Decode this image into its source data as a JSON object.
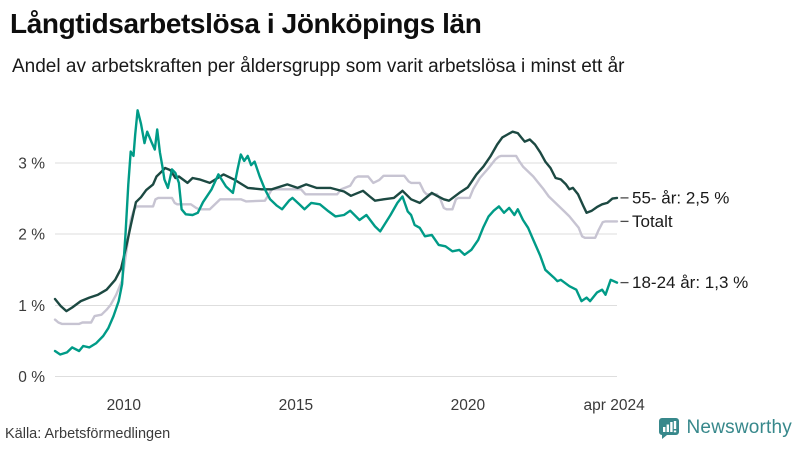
{
  "chart_data": {
    "type": "line",
    "title": "Långtidsarbetslösa i Jönköpings län",
    "subtitle": "Andel av arbetskraften per åldersgrupp som varit arbetslösa i minst ett år",
    "xlabel": "",
    "ylabel": "",
    "x_range": [
      2008.0,
      2024.333
    ],
    "ylim": [
      0,
      3.9
    ],
    "grid": true,
    "legend_position": "right-inline-end-labels",
    "y_ticks": [
      {
        "v": 0,
        "label": "0 %"
      },
      {
        "v": 1,
        "label": "1 %"
      },
      {
        "v": 2,
        "label": "2 %"
      },
      {
        "v": 3,
        "label": "3 %"
      }
    ],
    "x_ticks": [
      {
        "t": 2010,
        "label": "2010"
      },
      {
        "t": 2015,
        "label": "2015"
      },
      {
        "t": 2020,
        "label": "2020"
      },
      {
        "t": 2024.25,
        "label": "apr 2024"
      }
    ],
    "series": [
      {
        "name": "Totalt",
        "end_label": "Totalt",
        "end_value": 2.18,
        "color": "#c7c4d2",
        "points": [
          [
            2008.0,
            0.8
          ],
          [
            2008.1,
            0.76
          ],
          [
            2008.2,
            0.74
          ],
          [
            2008.7,
            0.74
          ],
          [
            2008.8,
            0.76
          ],
          [
            2009.05,
            0.76
          ],
          [
            2009.15,
            0.85
          ],
          [
            2009.35,
            0.87
          ],
          [
            2009.5,
            0.94
          ],
          [
            2009.62,
            1.01
          ],
          [
            2009.78,
            1.15
          ],
          [
            2009.95,
            1.35
          ],
          [
            2010.1,
            1.85
          ],
          [
            2010.2,
            2.2
          ],
          [
            2010.3,
            2.35
          ],
          [
            2010.38,
            2.39
          ],
          [
            2010.85,
            2.39
          ],
          [
            2010.92,
            2.49
          ],
          [
            2011.0,
            2.51
          ],
          [
            2011.4,
            2.51
          ],
          [
            2011.48,
            2.44
          ],
          [
            2011.55,
            2.42
          ],
          [
            2011.95,
            2.42
          ],
          [
            2012.1,
            2.37
          ],
          [
            2012.2,
            2.35
          ],
          [
            2012.5,
            2.35
          ],
          [
            2012.65,
            2.42
          ],
          [
            2012.8,
            2.49
          ],
          [
            2013.4,
            2.49
          ],
          [
            2013.55,
            2.46
          ],
          [
            2014.1,
            2.47
          ],
          [
            2014.22,
            2.56
          ],
          [
            2014.3,
            2.63
          ],
          [
            2015.15,
            2.63
          ],
          [
            2015.28,
            2.56
          ],
          [
            2016.2,
            2.56
          ],
          [
            2016.32,
            2.63
          ],
          [
            2016.58,
            2.68
          ],
          [
            2016.72,
            2.79
          ],
          [
            2016.8,
            2.81
          ],
          [
            2017.1,
            2.81
          ],
          [
            2017.25,
            2.72
          ],
          [
            2017.42,
            2.76
          ],
          [
            2017.55,
            2.82
          ],
          [
            2018.15,
            2.82
          ],
          [
            2018.28,
            2.74
          ],
          [
            2018.35,
            2.72
          ],
          [
            2018.6,
            2.72
          ],
          [
            2018.72,
            2.6
          ],
          [
            2018.8,
            2.56
          ],
          [
            2019.1,
            2.56
          ],
          [
            2019.2,
            2.49
          ],
          [
            2019.3,
            2.37
          ],
          [
            2019.38,
            2.35
          ],
          [
            2019.55,
            2.35
          ],
          [
            2019.65,
            2.49
          ],
          [
            2019.72,
            2.51
          ],
          [
            2020.05,
            2.51
          ],
          [
            2020.15,
            2.63
          ],
          [
            2020.35,
            2.79
          ],
          [
            2020.6,
            2.93
          ],
          [
            2020.8,
            3.05
          ],
          [
            2020.9,
            3.09
          ],
          [
            2020.97,
            3.1
          ],
          [
            2021.4,
            3.1
          ],
          [
            2021.5,
            3.02
          ],
          [
            2021.6,
            2.95
          ],
          [
            2021.75,
            2.88
          ],
          [
            2021.9,
            2.81
          ],
          [
            2022.05,
            2.72
          ],
          [
            2022.2,
            2.63
          ],
          [
            2022.35,
            2.53
          ],
          [
            2022.5,
            2.46
          ],
          [
            2022.65,
            2.39
          ],
          [
            2022.8,
            2.32
          ],
          [
            2022.95,
            2.25
          ],
          [
            2023.1,
            2.16
          ],
          [
            2023.22,
            2.09
          ],
          [
            2023.32,
            1.97
          ],
          [
            2023.4,
            1.95
          ],
          [
            2023.7,
            1.95
          ],
          [
            2023.8,
            2.06
          ],
          [
            2023.92,
            2.17
          ],
          [
            2024.0,
            2.18
          ],
          [
            2024.333,
            2.18
          ]
        ]
      },
      {
        "name": "55- år",
        "end_label": "55- år: 2,5 %",
        "end_value": 2.51,
        "color": "#1c4942",
        "points": [
          [
            2008.0,
            1.09
          ],
          [
            2008.17,
            0.99
          ],
          [
            2008.33,
            0.92
          ],
          [
            2008.5,
            0.97
          ],
          [
            2008.75,
            1.06
          ],
          [
            2009.0,
            1.11
          ],
          [
            2009.25,
            1.15
          ],
          [
            2009.5,
            1.22
          ],
          [
            2009.75,
            1.36
          ],
          [
            2009.92,
            1.52
          ],
          [
            2010.08,
            1.85
          ],
          [
            2010.2,
            2.12
          ],
          [
            2010.35,
            2.45
          ],
          [
            2010.5,
            2.52
          ],
          [
            2010.65,
            2.62
          ],
          [
            2010.85,
            2.7
          ],
          [
            2010.95,
            2.81
          ],
          [
            2011.1,
            2.88
          ],
          [
            2011.2,
            2.93
          ],
          [
            2011.35,
            2.9
          ],
          [
            2011.5,
            2.79
          ],
          [
            2011.6,
            2.81
          ],
          [
            2011.85,
            2.72
          ],
          [
            2012.0,
            2.79
          ],
          [
            2012.2,
            2.77
          ],
          [
            2012.5,
            2.72
          ],
          [
            2012.9,
            2.84
          ],
          [
            2013.2,
            2.77
          ],
          [
            2013.6,
            2.65
          ],
          [
            2014.0,
            2.63
          ],
          [
            2014.3,
            2.63
          ],
          [
            2014.75,
            2.7
          ],
          [
            2015.05,
            2.65
          ],
          [
            2015.3,
            2.7
          ],
          [
            2015.6,
            2.65
          ],
          [
            2016.0,
            2.65
          ],
          [
            2016.4,
            2.6
          ],
          [
            2016.6,
            2.54
          ],
          [
            2016.95,
            2.61
          ],
          [
            2017.15,
            2.53
          ],
          [
            2017.3,
            2.47
          ],
          [
            2017.55,
            2.49
          ],
          [
            2017.85,
            2.51
          ],
          [
            2018.1,
            2.61
          ],
          [
            2018.35,
            2.49
          ],
          [
            2018.6,
            2.44
          ],
          [
            2018.95,
            2.58
          ],
          [
            2019.1,
            2.54
          ],
          [
            2019.3,
            2.49
          ],
          [
            2019.45,
            2.47
          ],
          [
            2019.75,
            2.58
          ],
          [
            2020.0,
            2.66
          ],
          [
            2020.25,
            2.84
          ],
          [
            2020.45,
            2.95
          ],
          [
            2020.65,
            3.09
          ],
          [
            2020.85,
            3.26
          ],
          [
            2021.0,
            3.36
          ],
          [
            2021.15,
            3.4
          ],
          [
            2021.3,
            3.44
          ],
          [
            2021.45,
            3.42
          ],
          [
            2021.55,
            3.36
          ],
          [
            2021.65,
            3.3
          ],
          [
            2021.8,
            3.33
          ],
          [
            2021.95,
            3.26
          ],
          [
            2022.1,
            3.15
          ],
          [
            2022.25,
            3.02
          ],
          [
            2022.4,
            2.93
          ],
          [
            2022.55,
            2.79
          ],
          [
            2022.7,
            2.77
          ],
          [
            2022.85,
            2.7
          ],
          [
            2022.95,
            2.63
          ],
          [
            2023.05,
            2.65
          ],
          [
            2023.2,
            2.56
          ],
          [
            2023.35,
            2.4
          ],
          [
            2023.45,
            2.3
          ],
          [
            2023.6,
            2.33
          ],
          [
            2023.75,
            2.38
          ],
          [
            2023.9,
            2.42
          ],
          [
            2024.05,
            2.44
          ],
          [
            2024.2,
            2.5
          ],
          [
            2024.333,
            2.51
          ]
        ]
      },
      {
        "name": "18-24 år",
        "end_label": "18-24 år: 1,3 %",
        "end_value": 1.32,
        "color": "#009b87",
        "points": [
          [
            2008.0,
            0.36
          ],
          [
            2008.15,
            0.31
          ],
          [
            2008.35,
            0.34
          ],
          [
            2008.5,
            0.41
          ],
          [
            2008.7,
            0.36
          ],
          [
            2008.82,
            0.43
          ],
          [
            2009.0,
            0.41
          ],
          [
            2009.2,
            0.47
          ],
          [
            2009.4,
            0.57
          ],
          [
            2009.55,
            0.68
          ],
          [
            2009.7,
            0.85
          ],
          [
            2009.85,
            1.06
          ],
          [
            2009.95,
            1.3
          ],
          [
            2010.05,
            2.0
          ],
          [
            2010.13,
            2.7
          ],
          [
            2010.2,
            3.16
          ],
          [
            2010.28,
            3.1
          ],
          [
            2010.33,
            3.4
          ],
          [
            2010.4,
            3.74
          ],
          [
            2010.5,
            3.55
          ],
          [
            2010.6,
            3.28
          ],
          [
            2010.68,
            3.44
          ],
          [
            2010.8,
            3.3
          ],
          [
            2010.9,
            3.19
          ],
          [
            2010.97,
            3.47
          ],
          [
            2011.05,
            3.15
          ],
          [
            2011.12,
            2.95
          ],
          [
            2011.18,
            2.77
          ],
          [
            2011.28,
            2.65
          ],
          [
            2011.4,
            2.91
          ],
          [
            2011.5,
            2.86
          ],
          [
            2011.6,
            2.72
          ],
          [
            2011.68,
            2.35
          ],
          [
            2011.8,
            2.28
          ],
          [
            2012.0,
            2.27
          ],
          [
            2012.15,
            2.3
          ],
          [
            2012.3,
            2.45
          ],
          [
            2012.55,
            2.63
          ],
          [
            2012.75,
            2.84
          ],
          [
            2012.97,
            2.67
          ],
          [
            2013.17,
            2.58
          ],
          [
            2013.3,
            2.9
          ],
          [
            2013.4,
            3.12
          ],
          [
            2013.5,
            3.03
          ],
          [
            2013.6,
            3.1
          ],
          [
            2013.7,
            2.97
          ],
          [
            2013.8,
            3.02
          ],
          [
            2013.95,
            2.81
          ],
          [
            2014.1,
            2.63
          ],
          [
            2014.25,
            2.49
          ],
          [
            2014.45,
            2.4
          ],
          [
            2014.6,
            2.35
          ],
          [
            2014.8,
            2.47
          ],
          [
            2014.9,
            2.51
          ],
          [
            2015.1,
            2.42
          ],
          [
            2015.25,
            2.35
          ],
          [
            2015.45,
            2.44
          ],
          [
            2015.7,
            2.42
          ],
          [
            2015.95,
            2.32
          ],
          [
            2016.15,
            2.25
          ],
          [
            2016.4,
            2.27
          ],
          [
            2016.58,
            2.33
          ],
          [
            2016.85,
            2.2
          ],
          [
            2017.05,
            2.27
          ],
          [
            2017.3,
            2.11
          ],
          [
            2017.45,
            2.04
          ],
          [
            2017.75,
            2.27
          ],
          [
            2017.95,
            2.44
          ],
          [
            2018.1,
            2.53
          ],
          [
            2018.25,
            2.32
          ],
          [
            2018.35,
            2.27
          ],
          [
            2018.45,
            2.13
          ],
          [
            2018.6,
            2.09
          ],
          [
            2018.75,
            1.97
          ],
          [
            2018.95,
            1.99
          ],
          [
            2019.15,
            1.85
          ],
          [
            2019.35,
            1.83
          ],
          [
            2019.55,
            1.76
          ],
          [
            2019.75,
            1.78
          ],
          [
            2019.9,
            1.71
          ],
          [
            2020.1,
            1.78
          ],
          [
            2020.3,
            1.92
          ],
          [
            2020.45,
            2.1
          ],
          [
            2020.6,
            2.25
          ],
          [
            2020.75,
            2.33
          ],
          [
            2020.9,
            2.39
          ],
          [
            2021.05,
            2.3
          ],
          [
            2021.2,
            2.37
          ],
          [
            2021.35,
            2.27
          ],
          [
            2021.45,
            2.35
          ],
          [
            2021.6,
            2.2
          ],
          [
            2021.75,
            2.09
          ],
          [
            2021.9,
            1.92
          ],
          [
            2022.1,
            1.7
          ],
          [
            2022.25,
            1.5
          ],
          [
            2022.5,
            1.39
          ],
          [
            2022.6,
            1.34
          ],
          [
            2022.7,
            1.36
          ],
          [
            2022.95,
            1.27
          ],
          [
            2023.15,
            1.22
          ],
          [
            2023.3,
            1.06
          ],
          [
            2023.45,
            1.11
          ],
          [
            2023.55,
            1.06
          ],
          [
            2023.75,
            1.18
          ],
          [
            2023.9,
            1.22
          ],
          [
            2024.0,
            1.15
          ],
          [
            2024.15,
            1.36
          ],
          [
            2024.333,
            1.32
          ]
        ]
      }
    ],
    "colors": {
      "gridline": "#dedede",
      "axis_text": "#3a3a3a",
      "end_label_text": "#1a1a1a",
      "end_label_dash": "#4a4a4a"
    }
  },
  "footer": {
    "source": "Källa: Arbetsförmedlingen",
    "brand": "Newsworthy",
    "brand_color": "#37888b"
  }
}
